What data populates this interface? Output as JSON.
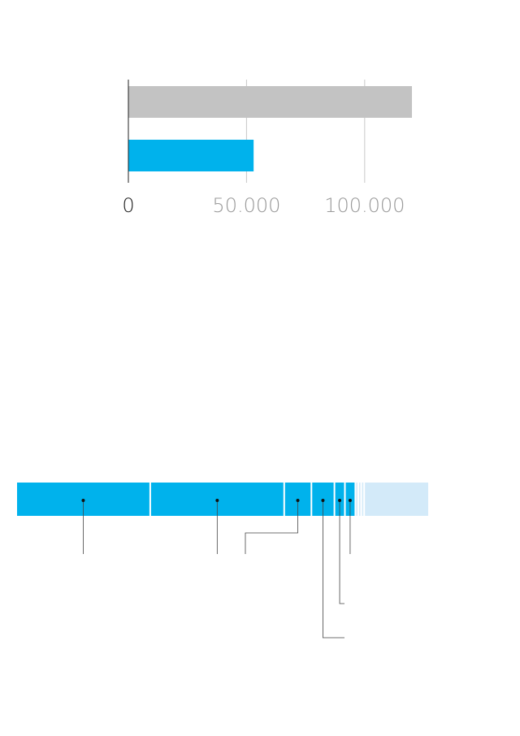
{
  "chart_data": [
    {
      "type": "bar",
      "categories": [
        null,
        null
      ],
      "values": [
        120000,
        53000
      ],
      "colors": [
        "#c3c3c3",
        "#00b2ec"
      ],
      "xlim": [
        0,
        120000
      ],
      "xticks": [
        0,
        {
          "value": 50000,
          "label": "50.000"
        },
        {
          "value": 100000,
          "label": "100.000"
        }
      ],
      "grid": true
    },
    {
      "type": "stacked-bar",
      "values": [
        32,
        32,
        6.5,
        5.5,
        2.5,
        2.5,
        0.7,
        0.7,
        0.7,
        15.1
      ],
      "colors": [
        "#00b2ec",
        "#00b2ec",
        "#00b2ec",
        "#00b2ec",
        "#00b2ec",
        "#00b2ec",
        "#d3eaf9",
        "#d3eaf9",
        "#d3eaf9",
        "#d3eaf9"
      ]
    }
  ]
}
